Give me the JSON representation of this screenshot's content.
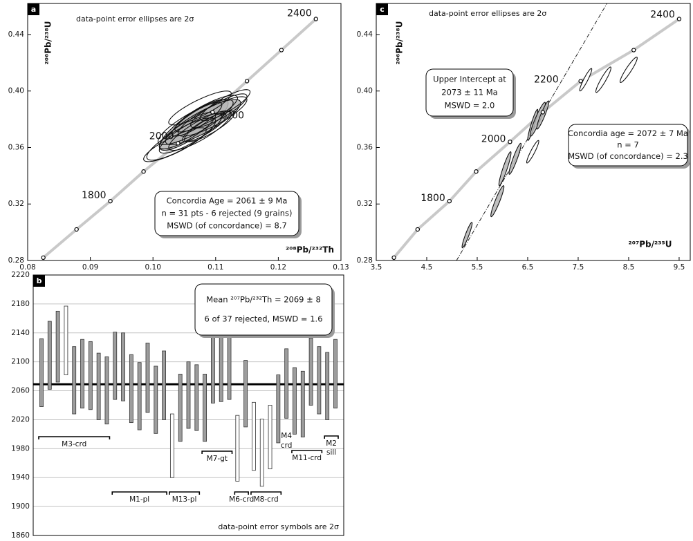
{
  "chart_data": [
    {
      "type": "concordia",
      "panel_label": "a",
      "note": "data-point error ellipses are 2σ",
      "xlabel": "²⁰⁸Pb/²³²Th",
      "ylabel": "²⁰⁶Pb/²³⁸U",
      "xlim": [
        0.08,
        0.13
      ],
      "xticks": [
        0.08,
        0.09,
        {
          "value": 0.1,
          "label": "0.10"
        },
        0.11,
        0.12,
        0.13
      ],
      "ylim": [
        0.28,
        0.462
      ],
      "yticks": [
        0.28,
        0.32,
        0.36,
        {
          "value": 0.4,
          "label": "0.40"
        },
        0.44
      ],
      "concordia": {
        "x": [
          0.0825,
          0.0878,
          0.0932,
          0.0985,
          0.104,
          0.1095,
          0.115,
          0.1205,
          0.126
        ],
        "y": [
          0.282,
          0.302,
          0.322,
          0.343,
          0.363,
          0.385,
          0.407,
          0.429,
          0.451
        ],
        "ages": [
          null,
          null,
          1800,
          null,
          2000,
          null,
          2200,
          null,
          2400
        ]
      },
      "ellipses": {
        "x": [
          0.1065,
          0.108,
          0.1075,
          0.1055,
          0.1095,
          0.107,
          0.1085,
          0.1045,
          0.1105,
          0.106,
          0.109,
          0.1075,
          0.1035,
          0.1115,
          0.1068,
          0.1082
        ],
        "y": [
          0.376,
          0.378,
          0.372,
          0.372,
          0.382,
          0.38,
          0.384,
          0.366,
          0.386,
          0.37,
          0.375,
          0.388,
          0.362,
          0.39,
          0.378,
          0.374
        ],
        "sx": [
          0.0055,
          0.006,
          0.005,
          0.0045,
          0.0055,
          0.004,
          0.005,
          0.0055,
          0.0045,
          0.005,
          0.004,
          0.005,
          0.005,
          0.004,
          0.006,
          0.0035
        ],
        "sy": [
          0.018,
          0.016,
          0.014,
          0.013,
          0.014,
          0.012,
          0.013,
          0.015,
          0.012,
          0.014,
          0.011,
          0.012,
          0.012,
          0.011,
          0.016,
          0.01
        ],
        "shaded": [
          true,
          true,
          false,
          false,
          false,
          false,
          false,
          false,
          false,
          false,
          false,
          false,
          false,
          false,
          false,
          false
        ]
      },
      "result_boxes": [
        [
          "Concordia Age = 2061 ± 9 Ma",
          "n = 31 pts - 6 rejected (9 grains)",
          "MSWD  (of concordance) = 8.7"
        ]
      ]
    },
    {
      "type": "range-bar",
      "panel_label": "b",
      "note": "data-point error symbols are 2σ",
      "ylim": [
        1860,
        2220
      ],
      "yticks": [
        1860,
        1900,
        1940,
        1980,
        2020,
        2060,
        2100,
        2140,
        2180,
        2220
      ],
      "grid": true,
      "high": [
        2132,
        2156,
        2170,
        2177,
        2121,
        2131,
        2128,
        2112,
        2107,
        2141,
        2140,
        2110,
        2099,
        2126,
        2094,
        2115,
        2028,
        2083,
        2100,
        2096,
        2083,
        2137,
        2140,
        2143,
        2026,
        2102,
        2044,
        2021,
        2040,
        2082,
        2118,
        2092,
        2087,
        2133,
        2121,
        2113,
        2131
      ],
      "low": [
        2038,
        2062,
        2072,
        2082,
        2028,
        2036,
        2034,
        2020,
        2014,
        2048,
        2046,
        2016,
        2006,
        2030,
        2001,
        2020,
        1940,
        1990,
        2008,
        2005,
        1990,
        2043,
        2045,
        2048,
        1935,
        2010,
        1950,
        1928,
        1952,
        1988,
        2022,
        2000,
        1996,
        2040,
        2028,
        2020,
        2036
      ],
      "rejected": [
        false,
        false,
        false,
        true,
        false,
        false,
        false,
        false,
        false,
        false,
        false,
        false,
        false,
        false,
        false,
        false,
        true,
        false,
        false,
        false,
        false,
        false,
        false,
        false,
        true,
        false,
        true,
        true,
        true,
        false,
        false,
        false,
        false,
        false,
        false,
        false,
        false
      ],
      "mean": 2069,
      "groups": [
        {
          "label": [
            "M3-crd"
          ],
          "count": 9
        },
        {
          "label": [
            "M1-pl"
          ],
          "count": 7
        },
        {
          "label": [
            "M13-pl"
          ],
          "count": 4
        },
        {
          "label": [
            "M7-gt"
          ],
          "count": 4
        },
        {
          "label": [
            "M6-crd"
          ],
          "count": 2
        },
        {
          "label": [
            "M8-crd"
          ],
          "count": 4
        },
        {
          "label": [
            "M4",
            "crd"
          ],
          "count": 1
        },
        {
          "label": [
            "M11-crd"
          ],
          "count": 4
        },
        {
          "label": [
            "M2",
            "sill"
          ],
          "count": 2
        }
      ],
      "result_boxes": [
        [
          "Mean ²⁰⁷Pb/²³²Th = 2069 ± 8",
          "6 of 37 rejected, MSWD = 1.6"
        ]
      ]
    },
    {
      "type": "concordia",
      "panel_label": "c",
      "note": "data-point error ellipses are 2σ",
      "xlabel": "²⁰⁷Pb/²³⁵U",
      "ylabel": "²⁰⁶Pb/²³⁸U",
      "xlim": [
        3.5,
        9.72
      ],
      "xticks": [
        3.5,
        4.5,
        5.5,
        6.5,
        7.5,
        8.5,
        9.5
      ],
      "ylim": [
        0.28,
        0.462
      ],
      "yticks": [
        0.28,
        0.32,
        0.36,
        {
          "value": 0.4,
          "label": "0.40"
        },
        0.44
      ],
      "concordia": {
        "x": [
          3.85,
          4.32,
          4.95,
          5.48,
          6.15,
          6.8,
          7.55,
          8.6,
          9.5
        ],
        "y": [
          0.282,
          0.302,
          0.322,
          0.343,
          0.364,
          0.385,
          0.407,
          0.429,
          0.451
        ],
        "ages": [
          null,
          null,
          1800,
          null,
          2000,
          null,
          2200,
          null,
          2400
        ]
      },
      "discordia": {
        "x": [
          5.09,
          8.07
        ],
        "y": [
          0.28,
          0.462
        ]
      },
      "ellipses": {
        "x": [
          5.3,
          5.9,
          6.05,
          6.25,
          6.6,
          6.7,
          6.8,
          6.6,
          7.65,
          8.0,
          8.5
        ],
        "y": [
          0.298,
          0.322,
          0.345,
          0.352,
          0.376,
          0.38,
          0.383,
          0.357,
          0.408,
          0.408,
          0.415
        ],
        "sx": [
          0.1,
          0.13,
          0.12,
          0.12,
          0.1,
          0.15,
          0.12,
          0.12,
          0.12,
          0.15,
          0.17
        ],
        "sy": [
          0.009,
          0.011,
          0.012,
          0.011,
          0.011,
          0.012,
          0.01,
          0.008,
          0.008,
          0.009,
          0.009
        ],
        "shaded": [
          true,
          true,
          true,
          true,
          true,
          true,
          true,
          false,
          false,
          false,
          false
        ]
      },
      "result_boxes": [
        [
          "Upper Intercept at",
          "2073 ± 11 Ma",
          "MSWD = 2.0"
        ],
        [
          "Concordia age = 2072 ± 7 Ma",
          "n = 7",
          "MSWD (of concordance) = 2.3"
        ]
      ]
    }
  ]
}
